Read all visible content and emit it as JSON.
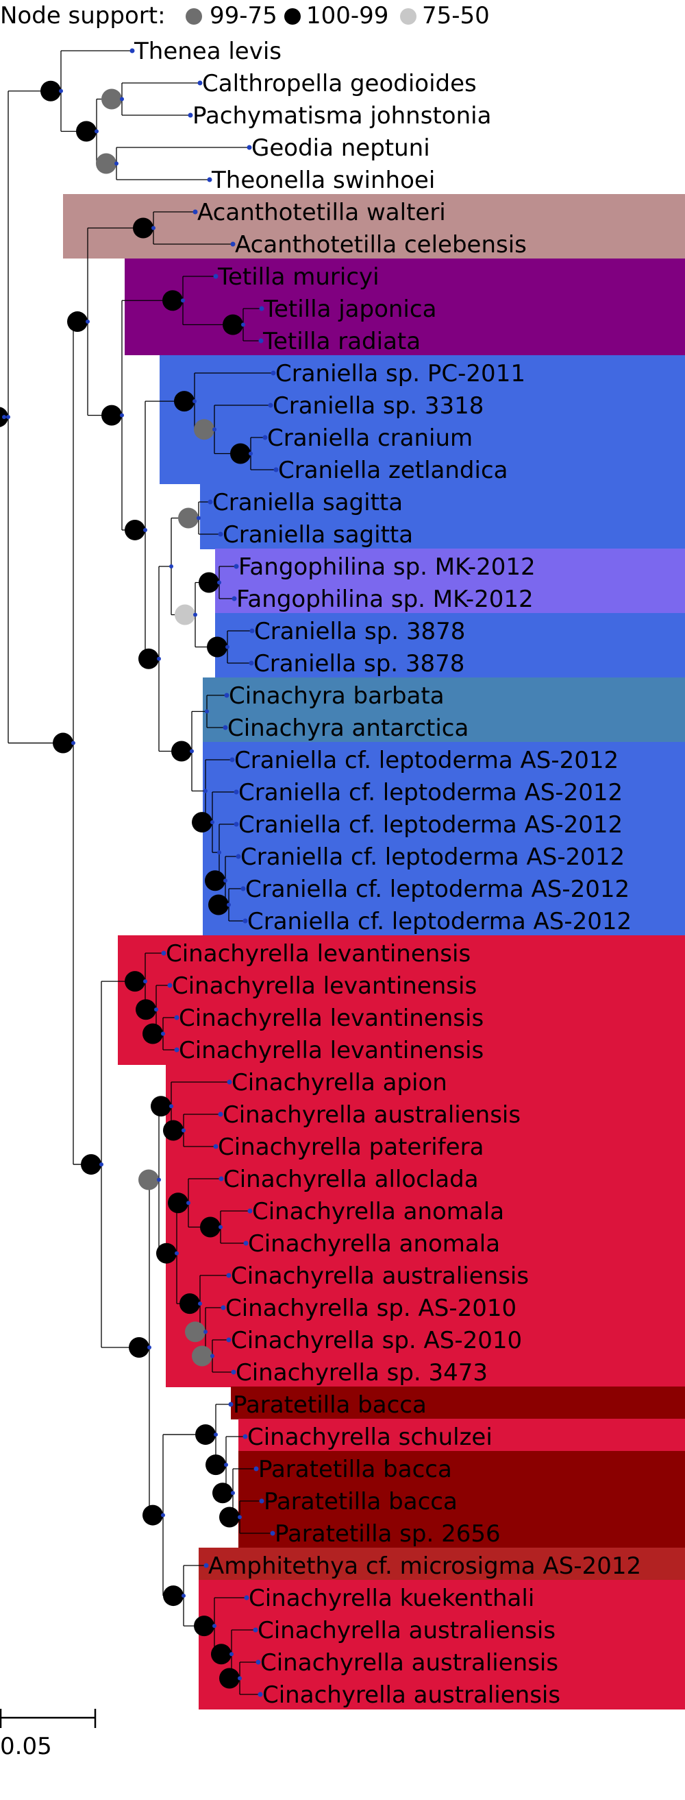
{
  "legend": {
    "title": "Node support:",
    "items": [
      {
        "label": "99-75",
        "color": "#6e6e6e"
      },
      {
        "label": "100-99",
        "color": "#000000"
      },
      {
        "label": "75-50",
        "color": "#c8c8c8"
      }
    ]
  },
  "scale_bar": {
    "label": "0.05"
  },
  "colors": {
    "branch": "#000000",
    "tip_dot": "#1f3fbf",
    "acanthotetilla": "#bc8f8f",
    "tetilla": "#800080",
    "craniella": "#4169e1",
    "fangophilina": "#7b68ee",
    "cinachyra": "#4682b4",
    "cinachyrella": "#dc143c",
    "paratetilla": "#8b0000",
    "amphitethya": "#b22222"
  },
  "taxa": [
    "Thenea levis",
    "Calthropella geodioides",
    "Pachymatisma johnstonia",
    "Geodia neptuni",
    "Theonella swinhoei",
    "Acanthotetilla walteri",
    "Acanthotetilla celebensis",
    "Tetilla muricyi",
    "Tetilla japonica",
    "Tetilla radiata",
    "Craniella sp. PC-2011",
    "Craniella sp. 3318",
    "Craniella cranium",
    "Craniella zetlandica",
    "Craniella sagitta",
    "Craniella sagitta",
    "Fangophilina sp. MK-2012",
    "Fangophilina sp. MK-2012",
    "Craniella sp. 3878",
    "Craniella sp. 3878",
    "Cinachyra barbata",
    "Cinachyra antarctica",
    "Craniella cf. leptoderma AS-2012",
    "Craniella cf. leptoderma AS-2012",
    "Craniella cf. leptoderma AS-2012",
    "Craniella cf. leptoderma AS-2012",
    "Craniella cf. leptoderma AS-2012",
    "Craniella cf. leptoderma AS-2012",
    "Cinachyrella levantinensis",
    "Cinachyrella levantinensis",
    "Cinachyrella levantinensis",
    "Cinachyrella levantinensis",
    "Cinachyrella apion",
    "Cinachyrella australiensis",
    "Cinachyrella paterifera",
    "Cinachyrella alloclada",
    "Cinachyrella anomala",
    "Cinachyrella anomala",
    "Cinachyrella australiensis",
    "Cinachyrella sp. AS-2010",
    "Cinachyrella sp. AS-2010",
    "Cinachyrella sp. 3473",
    "Paratetilla bacca",
    "Cinachyrella schulzei",
    "Paratetilla bacca",
    "Paratetilla bacca",
    "Paratetilla sp. 2656",
    "Amphitethya cf. microsigma AS-2012",
    "Cinachyrella kuekenthali",
    "Cinachyrella australiensis",
    "Cinachyrella australiensis",
    "Cinachyrella australiensis"
  ]
}
